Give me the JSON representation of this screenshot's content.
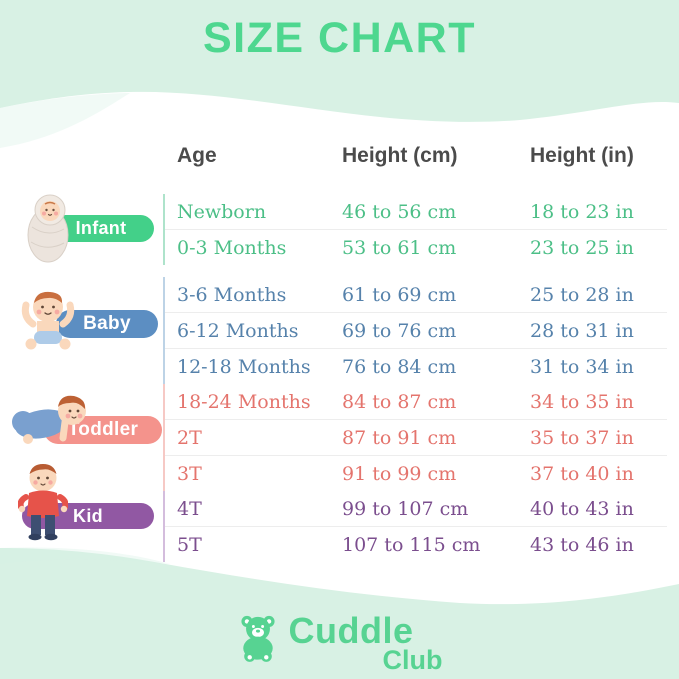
{
  "title": "SIZE CHART",
  "colors": {
    "background_mint": "#d8f1e4",
    "card": "#ffffff",
    "title_green": "#4ed78f",
    "header_text": "#4b4b4b",
    "divider": "#ededed",
    "logo_green": "#57d392"
  },
  "table": {
    "headers": {
      "age": "Age",
      "height_cm": "Height (cm)",
      "height_in": "Height (in)"
    },
    "groups": [
      {
        "label": "Infant",
        "pill_color": "#43d089",
        "text_color": "#4cbf87",
        "line_color": "#aee3cb",
        "rows": [
          [
            "Newborn",
            "46 to 56 cm",
            "18 to 23 in"
          ],
          [
            "0-3 Months",
            "53 to 61 cm",
            "23 to 25 in"
          ]
        ]
      },
      {
        "label": "Baby",
        "pill_color": "#5c8ec2",
        "text_color": "#5682ab",
        "line_color": "#bdd3e6",
        "rows": [
          [
            "3-6 Months",
            "61 to 69 cm",
            "25 to 28 in"
          ],
          [
            "6-12 Months",
            "69 to 76 cm",
            "28 to 31 in"
          ],
          [
            "12-18 Months",
            "76 to 84 cm",
            "31 to 34 in"
          ]
        ]
      },
      {
        "label": "Toddler",
        "pill_color": "#f4938c",
        "text_color": "#e4746d",
        "line_color": "#f6c9c5",
        "rows": [
          [
            "18-24 Months",
            "84 to 87 cm",
            "34 to 35 in"
          ],
          [
            "2T",
            "87 to 91 cm",
            "35 to 37 in"
          ],
          [
            "3T",
            "91 to 99 cm",
            "37 to 40 in"
          ]
        ]
      },
      {
        "label": "Kid",
        "pill_color": "#9158a3",
        "text_color": "#7b4e8e",
        "line_color": "#d4bddd",
        "rows": [
          [
            "4T",
            "99 to 107 cm",
            "40 to 43 in"
          ],
          [
            "5T",
            "107 to 115 cm",
            "43 to 46 in"
          ]
        ]
      }
    ]
  },
  "footer": {
    "brand_name": "Cuddle",
    "brand_suffix": "Club"
  },
  "chart_data": {
    "type": "table",
    "title": "SIZE CHART",
    "columns": [
      "Age",
      "Height (cm)",
      "Height (in)"
    ],
    "rows": [
      {
        "group": "Infant",
        "age": "Newborn",
        "height_cm": "46 to 56 cm",
        "height_in": "18 to 23 in"
      },
      {
        "group": "Infant",
        "age": "0-3 Months",
        "height_cm": "53 to 61 cm",
        "height_in": "23 to 25 in"
      },
      {
        "group": "Baby",
        "age": "3-6 Months",
        "height_cm": "61 to 69 cm",
        "height_in": "25 to 28 in"
      },
      {
        "group": "Baby",
        "age": "6-12 Months",
        "height_cm": "69 to 76 cm",
        "height_in": "28 to 31 in"
      },
      {
        "group": "Baby",
        "age": "12-18 Months",
        "height_cm": "76 to 84 cm",
        "height_in": "31 to 34 in"
      },
      {
        "group": "Toddler",
        "age": "18-24 Months",
        "height_cm": "84 to 87 cm",
        "height_in": "34 to 35 in"
      },
      {
        "group": "Toddler",
        "age": "2T",
        "height_cm": "87 to 91 cm",
        "height_in": "35 to 37 in"
      },
      {
        "group": "Toddler",
        "age": "3T",
        "height_cm": "91 to 99 cm",
        "height_in": "37 to 40 in"
      },
      {
        "group": "Kid",
        "age": "4T",
        "height_cm": "99 to 107 cm",
        "height_in": "40 to 43 in"
      },
      {
        "group": "Kid",
        "age": "5T",
        "height_cm": "107 to 115 cm",
        "height_in": "43 to 46 in"
      }
    ]
  }
}
